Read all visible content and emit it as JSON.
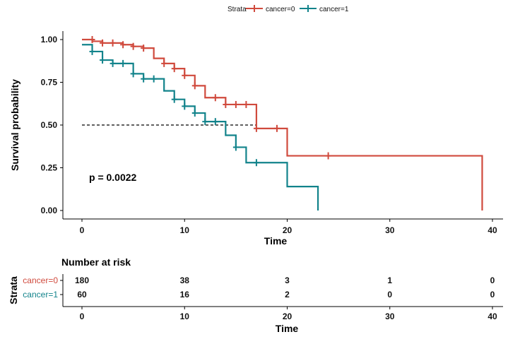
{
  "legend": {
    "title": "Strata",
    "items": [
      {
        "label": "cancer=0",
        "color": "#d04a3d"
      },
      {
        "label": "cancer=1",
        "color": "#12838b"
      }
    ]
  },
  "chart_data": {
    "type": "line",
    "subtype": "kaplan-meier",
    "xlabel": "Time",
    "ylabel": "Survival probability",
    "xlim": [
      0,
      40
    ],
    "ylim": [
      0,
      1
    ],
    "xticks": [
      "0",
      "10",
      "20",
      "30",
      "40"
    ],
    "yticks": [
      "0.00",
      "0.25",
      "0.50",
      "0.75",
      "1.00"
    ],
    "grid": false,
    "legend_position": "top",
    "median_line_y": 0.5,
    "p_value_text": "p = 0.0022",
    "series": [
      {
        "name": "cancer=0",
        "color": "#d04a3d",
        "steps": [
          [
            0,
            1.0
          ],
          [
            1,
            0.99
          ],
          [
            2,
            0.98
          ],
          [
            4,
            0.97
          ],
          [
            5,
            0.96
          ],
          [
            6,
            0.95
          ],
          [
            7,
            0.89
          ],
          [
            8,
            0.86
          ],
          [
            9,
            0.83
          ],
          [
            10,
            0.79
          ],
          [
            11,
            0.73
          ],
          [
            12,
            0.66
          ],
          [
            14,
            0.62
          ],
          [
            17,
            0.48
          ],
          [
            20,
            0.32
          ],
          [
            39,
            0.32
          ],
          [
            39,
            0.0
          ]
        ],
        "end": 39,
        "censored": [
          [
            1,
            1.0
          ],
          [
            2,
            0.98
          ],
          [
            3,
            0.98
          ],
          [
            4,
            0.97
          ],
          [
            5,
            0.96
          ],
          [
            6,
            0.95
          ],
          [
            8,
            0.86
          ],
          [
            9,
            0.83
          ],
          [
            10,
            0.79
          ],
          [
            11,
            0.73
          ],
          [
            13,
            0.66
          ],
          [
            14,
            0.62
          ],
          [
            15,
            0.62
          ],
          [
            16,
            0.62
          ],
          [
            17,
            0.48
          ],
          [
            19,
            0.48
          ],
          [
            24,
            0.32
          ]
        ]
      },
      {
        "name": "cancer=1",
        "color": "#12838b",
        "steps": [
          [
            0,
            0.97
          ],
          [
            1,
            0.93
          ],
          [
            2,
            0.88
          ],
          [
            3,
            0.86
          ],
          [
            5,
            0.8
          ],
          [
            6,
            0.77
          ],
          [
            8,
            0.7
          ],
          [
            9,
            0.65
          ],
          [
            10,
            0.61
          ],
          [
            11,
            0.57
          ],
          [
            12,
            0.52
          ],
          [
            14,
            0.44
          ],
          [
            15,
            0.37
          ],
          [
            16,
            0.28
          ],
          [
            20,
            0.14
          ],
          [
            23,
            0.0
          ]
        ],
        "end": 23,
        "censored": [
          [
            1,
            0.93
          ],
          [
            2,
            0.88
          ],
          [
            3,
            0.86
          ],
          [
            4,
            0.86
          ],
          [
            5,
            0.8
          ],
          [
            6,
            0.77
          ],
          [
            7,
            0.77
          ],
          [
            9,
            0.65
          ],
          [
            10,
            0.61
          ],
          [
            11,
            0.57
          ],
          [
            12,
            0.52
          ],
          [
            13,
            0.52
          ],
          [
            15,
            0.37
          ],
          [
            17,
            0.28
          ]
        ]
      }
    ]
  },
  "risk_table": {
    "title": "Number at risk",
    "strata_label": "Strata",
    "xlabel": "Time",
    "times": [
      0,
      10,
      20,
      30,
      40
    ],
    "rows": [
      {
        "label": "cancer=0",
        "color": "#d04a3d",
        "values": [
          "180",
          "38",
          "3",
          "1",
          "0"
        ]
      },
      {
        "label": "cancer=1",
        "color": "#12838b",
        "values": [
          "60",
          "16",
          "2",
          "0",
          "0"
        ]
      }
    ]
  }
}
